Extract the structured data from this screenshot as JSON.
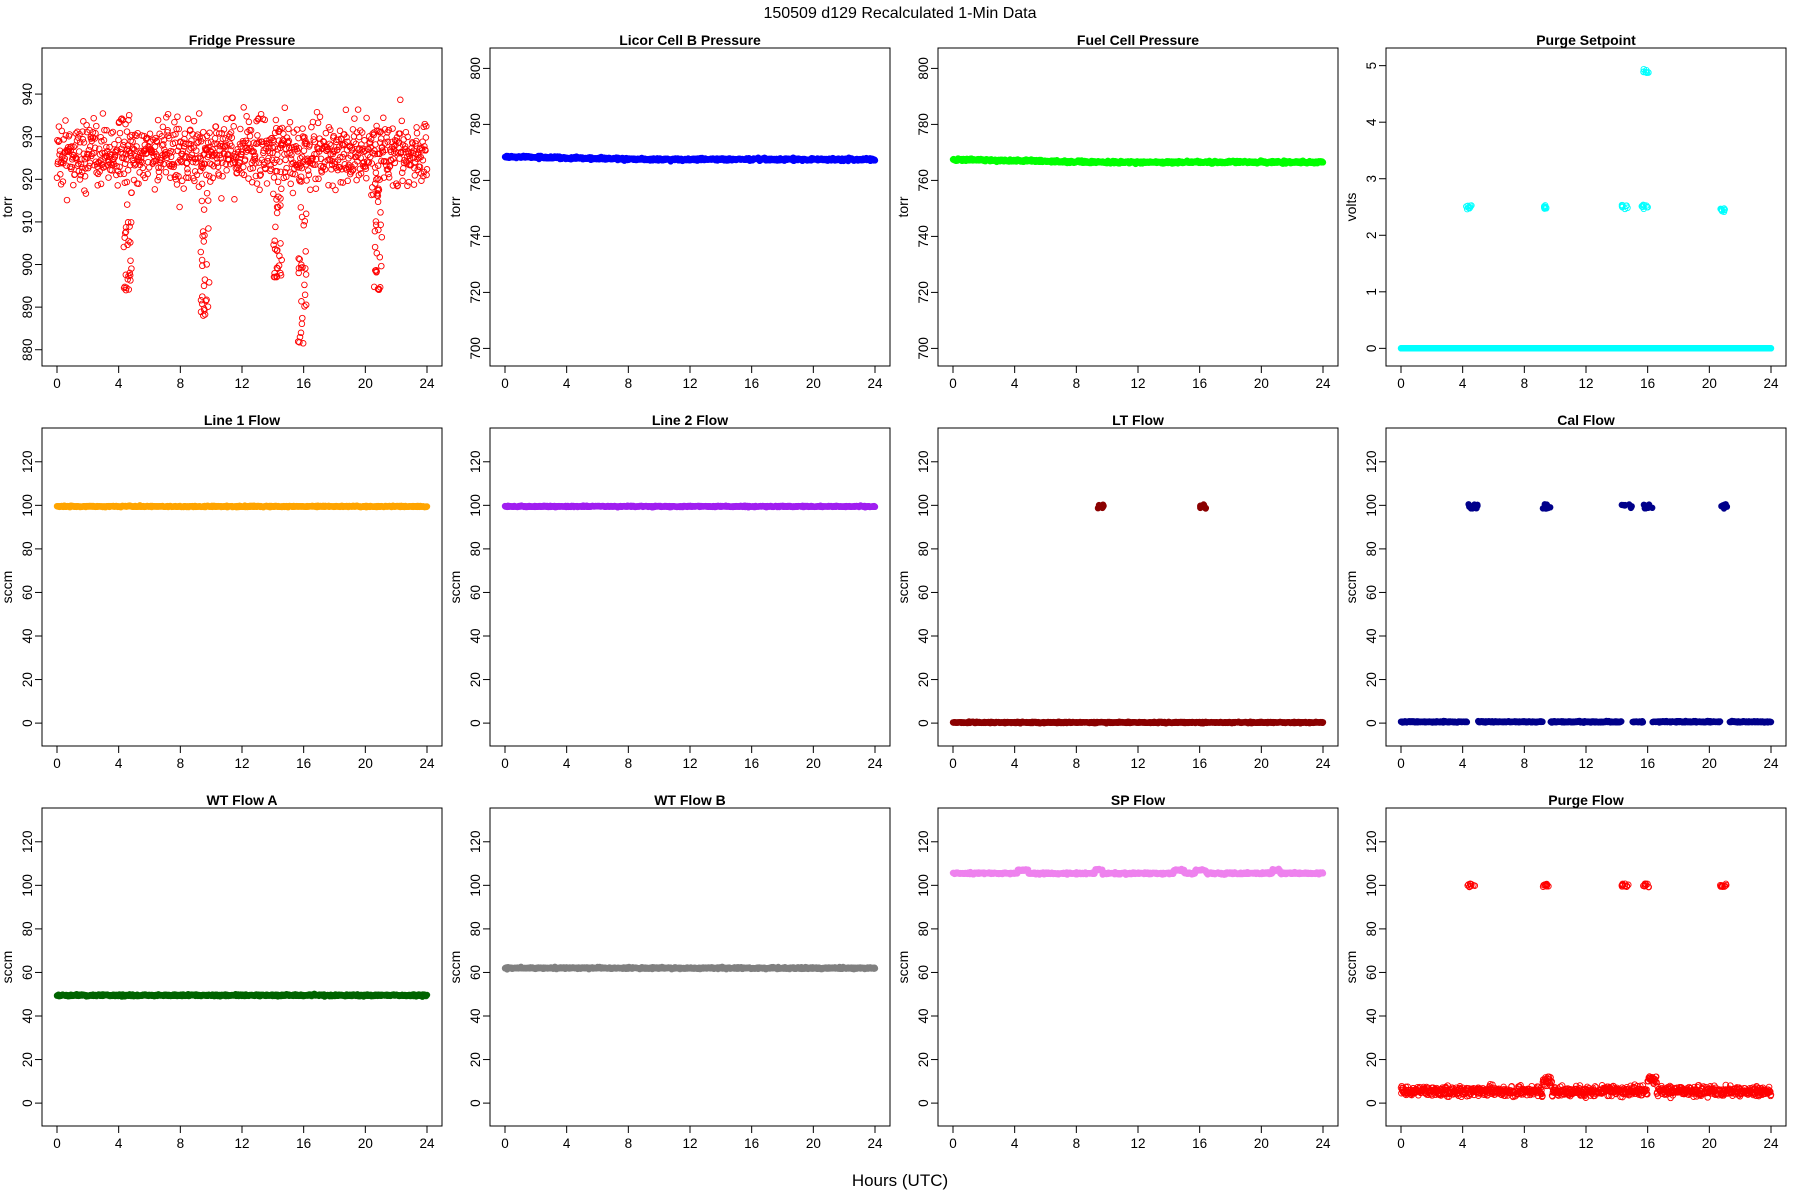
{
  "figure": {
    "title": "150509   d129   Recalculated 1-Min Data",
    "xlabel": "Hours (UTC)"
  },
  "chart_data": [
    {
      "type": "scatter",
      "title": "Fridge Pressure",
      "ylabel": "torr",
      "color": "#ff0000",
      "marker": "open",
      "xlim": [
        0,
        24
      ],
      "xticks": [
        0,
        4,
        8,
        12,
        16,
        20,
        24
      ],
      "ylim": [
        879,
        948
      ],
      "yticks": [
        880,
        890,
        900,
        910,
        920,
        930,
        940
      ],
      "pattern": "noisy",
      "base": 926,
      "noise": 5.5,
      "n": 1000,
      "dips": [
        {
          "x": 4.6,
          "min": 894
        },
        {
          "x": 9.6,
          "min": 888
        },
        {
          "x": 14.3,
          "min": 897
        },
        {
          "x": 15.9,
          "min": 881
        },
        {
          "x": 20.8,
          "min": 892
        }
      ]
    },
    {
      "type": "scatter",
      "title": "Licor Cell B Pressure",
      "ylabel": "torr",
      "color": "#0000ff",
      "marker": "filled",
      "xlim": [
        0,
        24
      ],
      "xticks": [
        0,
        4,
        8,
        12,
        16,
        20,
        24
      ],
      "ylim": [
        698,
        803
      ],
      "yticks": [
        700,
        720,
        740,
        760,
        780,
        800
      ],
      "pattern": "flat",
      "base": 767.5,
      "start": 768.5,
      "noise": 0.3
    },
    {
      "type": "scatter",
      "title": "Fuel Cell Pressure",
      "ylabel": "torr",
      "color": "#00ff00",
      "marker": "filled",
      "xlim": [
        0,
        24
      ],
      "xticks": [
        0,
        4,
        8,
        12,
        16,
        20,
        24
      ],
      "ylim": [
        698,
        803
      ],
      "yticks": [
        700,
        720,
        740,
        760,
        780,
        800
      ],
      "pattern": "flat",
      "base": 766.5,
      "start": 767.5,
      "noise": 0.3
    },
    {
      "type": "scatter",
      "title": "Purge Setpoint",
      "ylabel": "volts",
      "color": "#00ffff",
      "marker": "open",
      "xlim": [
        0,
        24
      ],
      "xticks": [
        0,
        4,
        8,
        12,
        16,
        20,
        24
      ],
      "ylim": [
        -0.1,
        5.1
      ],
      "yticks": [
        0,
        1,
        2,
        3,
        4,
        5
      ],
      "pattern": "events",
      "base": 0,
      "noise": 0,
      "events": [
        {
          "x0": 4.2,
          "x1": 4.6,
          "y": 2.5
        },
        {
          "x0": 9.2,
          "x1": 9.5,
          "y": 2.5
        },
        {
          "x0": 14.3,
          "x1": 14.7,
          "y": 2.5
        },
        {
          "x0": 15.6,
          "x1": 16.0,
          "y": 2.5
        },
        {
          "x0": 15.7,
          "x1": 16.1,
          "y": 4.9
        },
        {
          "x0": 20.7,
          "x1": 21.0,
          "y": 2.45
        }
      ]
    },
    {
      "type": "scatter",
      "title": "Line 1 Flow",
      "ylabel": "sccm",
      "color": "#ffa500",
      "marker": "filled",
      "xlim": [
        0,
        24
      ],
      "xticks": [
        0,
        4,
        8,
        12,
        16,
        20,
        24
      ],
      "ylim": [
        -5,
        130
      ],
      "yticks": [
        0,
        20,
        40,
        60,
        80,
        100,
        120
      ],
      "pattern": "flat",
      "base": 99.5,
      "noise": 0.2
    },
    {
      "type": "scatter",
      "title": "Line 2 Flow",
      "ylabel": "sccm",
      "color": "#a020f0",
      "marker": "filled",
      "xlim": [
        0,
        24
      ],
      "xticks": [
        0,
        4,
        8,
        12,
        16,
        20,
        24
      ],
      "ylim": [
        -5,
        130
      ],
      "yticks": [
        0,
        20,
        40,
        60,
        80,
        100,
        120
      ],
      "pattern": "flat",
      "base": 99.5,
      "noise": 0.2
    },
    {
      "type": "scatter",
      "title": "LT Flow",
      "ylabel": "sccm",
      "color": "#8b0000",
      "marker": "filled",
      "xlim": [
        0,
        24
      ],
      "xticks": [
        0,
        4,
        8,
        12,
        16,
        20,
        24
      ],
      "ylim": [
        -5,
        130
      ],
      "yticks": [
        0,
        20,
        40,
        60,
        80,
        100,
        120
      ],
      "pattern": "events",
      "base": 0.3,
      "noise": 0.2,
      "events": [
        {
          "x0": 9.4,
          "x1": 9.8,
          "y": 99.5
        },
        {
          "x0": 16.0,
          "x1": 16.4,
          "y": 99.5
        }
      ]
    },
    {
      "type": "scatter",
      "title": "Cal Flow",
      "ylabel": "sccm",
      "color": "#00008b",
      "marker": "filled",
      "xlim": [
        0,
        24
      ],
      "xticks": [
        0,
        4,
        8,
        12,
        16,
        20,
        24
      ],
      "ylim": [
        -5,
        130
      ],
      "yticks": [
        0,
        20,
        40,
        60,
        80,
        100,
        120
      ],
      "pattern": "events",
      "base": 0.6,
      "noise": 0.2,
      "events": [
        {
          "x0": 4.3,
          "x1": 5.0,
          "y": 99.5
        },
        {
          "x0": 9.2,
          "x1": 9.7,
          "y": 99.5
        },
        {
          "x0": 14.3,
          "x1": 15.0,
          "y": 99.5
        },
        {
          "x0": 15.7,
          "x1": 16.3,
          "y": 99.5
        },
        {
          "x0": 20.7,
          "x1": 21.3,
          "y": 99.5
        }
      ]
    },
    {
      "type": "scatter",
      "title": "WT Flow A",
      "ylabel": "sccm",
      "color": "#006400",
      "marker": "filled",
      "xlim": [
        0,
        24
      ],
      "xticks": [
        0,
        4,
        8,
        12,
        16,
        20,
        24
      ],
      "ylim": [
        -5,
        130
      ],
      "yticks": [
        0,
        20,
        40,
        60,
        80,
        100,
        120
      ],
      "pattern": "flat",
      "base": 49.5,
      "noise": 0.3
    },
    {
      "type": "scatter",
      "title": "WT Flow B",
      "ylabel": "sccm",
      "color": "#808080",
      "marker": "filled",
      "xlim": [
        0,
        24
      ],
      "xticks": [
        0,
        4,
        8,
        12,
        16,
        20,
        24
      ],
      "ylim": [
        -5,
        130
      ],
      "yticks": [
        0,
        20,
        40,
        60,
        80,
        100,
        120
      ],
      "pattern": "flat",
      "base": 62,
      "noise": 0.3
    },
    {
      "type": "scatter",
      "title": "SP Flow",
      "ylabel": "sccm",
      "color": "#ee82ee",
      "marker": "filled",
      "xlim": [
        0,
        24
      ],
      "xticks": [
        0,
        4,
        8,
        12,
        16,
        20,
        24
      ],
      "ylim": [
        -5,
        130
      ],
      "yticks": [
        0,
        20,
        40,
        60,
        80,
        100,
        120
      ],
      "pattern": "flat",
      "base": 105.5,
      "noise": 0.3,
      "bumps": [
        {
          "x0": 4.2,
          "x1": 4.9,
          "y": 107
        },
        {
          "x0": 9.2,
          "x1": 9.7,
          "y": 107
        },
        {
          "x0": 14.3,
          "x1": 15.0,
          "y": 107
        },
        {
          "x0": 15.7,
          "x1": 16.4,
          "y": 107
        },
        {
          "x0": 20.7,
          "x1": 21.2,
          "y": 107
        }
      ]
    },
    {
      "type": "scatter",
      "title": "Purge Flow",
      "ylabel": "sccm",
      "color": "#ff0000",
      "marker": "open",
      "xlim": [
        0,
        24
      ],
      "xticks": [
        0,
        4,
        8,
        12,
        16,
        20,
        24
      ],
      "ylim": [
        -5,
        130
      ],
      "yticks": [
        0,
        20,
        40,
        60,
        80,
        100,
        120
      ],
      "pattern": "noisy",
      "base": 5.5,
      "noise": 1.6,
      "n": 1000,
      "events": [
        {
          "x0": 4.3,
          "x1": 4.8,
          "y": 100
        },
        {
          "x0": 9.2,
          "x1": 9.6,
          "y": 100
        },
        {
          "x0": 14.3,
          "x1": 14.8,
          "y": 100
        },
        {
          "x0": 15.7,
          "x1": 16.2,
          "y": 100
        },
        {
          "x0": 20.7,
          "x1": 21.1,
          "y": 100
        }
      ],
      "bumps": [
        {
          "x0": 9.2,
          "x1": 9.8,
          "y": 10
        },
        {
          "x0": 16.0,
          "x1": 16.6,
          "y": 11
        }
      ]
    }
  ]
}
